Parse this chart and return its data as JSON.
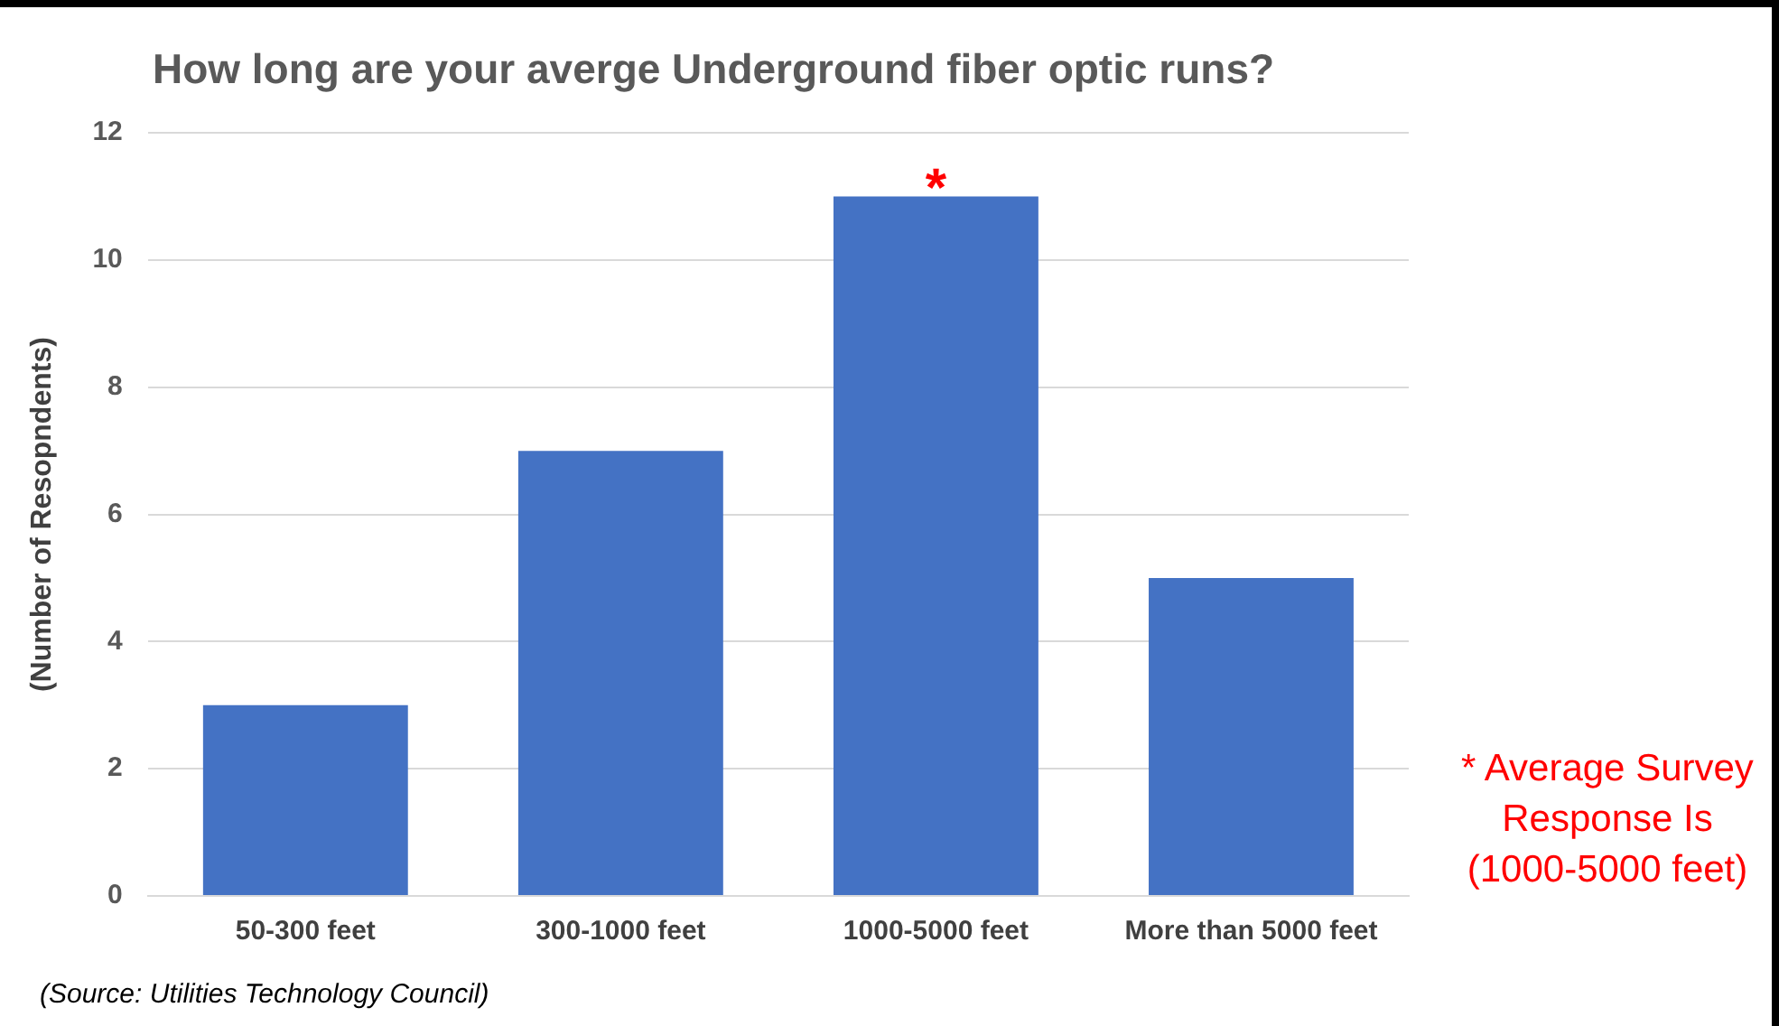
{
  "chart_data": {
    "type": "bar",
    "title": "How long are your averge Underground fiber optic runs?",
    "ylabel": "(Number of Resopndents)",
    "categories": [
      "50-300 feet",
      "300-1000 feet",
      "1000-5000 feet",
      "More than 5000 feet"
    ],
    "values": [
      3,
      7,
      11,
      5
    ],
    "color": "#4472c4",
    "ylim": [
      0,
      12
    ],
    "yticks": [
      0,
      2,
      4,
      6,
      8,
      10,
      12
    ],
    "grid": "y",
    "legend": false,
    "annotations": [
      {
        "text": "*",
        "x": "1000-5000 feet",
        "y": 11
      },
      "* Average Survey Response Is (1000-5000 feet)",
      "(Source: Utilities Technology Council)"
    ]
  }
}
